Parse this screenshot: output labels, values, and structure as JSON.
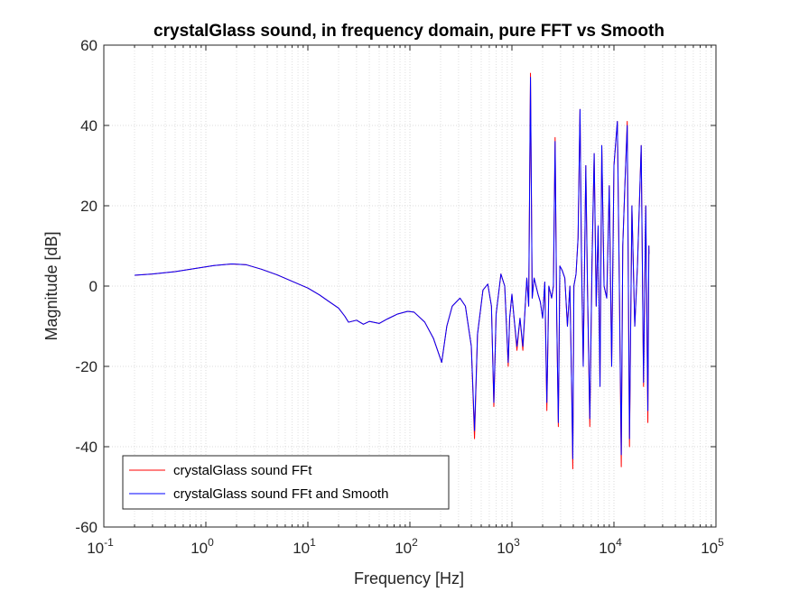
{
  "chart_data": {
    "type": "line",
    "title": "crystalGlass sound, in frequency domain, pure FFT vs Smooth",
    "xlabel": "Frequency [Hz]",
    "ylabel": "Magnitude [dB]",
    "xscale": "log",
    "xlim": [
      0.1,
      100000
    ],
    "ylim": [
      -60,
      60
    ],
    "x_ticks": [
      {
        "base": "10",
        "exp": "-1"
      },
      {
        "base": "10",
        "exp": "0"
      },
      {
        "base": "10",
        "exp": "1"
      },
      {
        "base": "10",
        "exp": "2"
      },
      {
        "base": "10",
        "exp": "3"
      },
      {
        "base": "10",
        "exp": "4"
      },
      {
        "base": "10",
        "exp": "5"
      }
    ],
    "y_ticks": [
      "-60",
      "-40",
      "-20",
      "0",
      "20",
      "40",
      "60"
    ],
    "grid": true,
    "legend_position": "bottom-left",
    "series": [
      {
        "name": "crystalGlass sound FFt",
        "color": "#ff0000",
        "points": [
          [
            0.2,
            2.7
          ],
          [
            0.3,
            3.0
          ],
          [
            0.5,
            3.6
          ],
          [
            0.8,
            4.4
          ],
          [
            1.2,
            5.1
          ],
          [
            1.8,
            5.5
          ],
          [
            2.5,
            5.3
          ],
          [
            3.5,
            4.2
          ],
          [
            5,
            2.8
          ],
          [
            7,
            1.2
          ],
          [
            10,
            -0.5
          ],
          [
            13,
            -2.2
          ],
          [
            16,
            -3.8
          ],
          [
            20,
            -5.5
          ],
          [
            23,
            -7.5
          ],
          [
            25,
            -9
          ],
          [
            30,
            -8.5
          ],
          [
            35,
            -9.5
          ],
          [
            40,
            -8.8
          ],
          [
            50,
            -9.3
          ],
          [
            60,
            -8.2
          ],
          [
            75,
            -7
          ],
          [
            95,
            -6.3
          ],
          [
            110,
            -6.5
          ],
          [
            140,
            -9
          ],
          [
            170,
            -13
          ],
          [
            205,
            -19
          ],
          [
            230,
            -10
          ],
          [
            260,
            -5
          ],
          [
            310,
            -3
          ],
          [
            350,
            -5
          ],
          [
            400,
            -15
          ],
          [
            430,
            -38
          ],
          [
            460,
            -12
          ],
          [
            520,
            -1
          ],
          [
            580,
            0.5
          ],
          [
            630,
            -5
          ],
          [
            665,
            -30
          ],
          [
            700,
            -7
          ],
          [
            780,
            3
          ],
          [
            850,
            0
          ],
          [
            920,
            -20
          ],
          [
            950,
            -8
          ],
          [
            1000,
            -2
          ],
          [
            1050,
            -8
          ],
          [
            1120,
            -16
          ],
          [
            1200,
            -8
          ],
          [
            1280,
            -16
          ],
          [
            1350,
            -5
          ],
          [
            1400,
            2
          ],
          [
            1460,
            -5
          ],
          [
            1520,
            53
          ],
          [
            1580,
            -3
          ],
          [
            1650,
            2
          ],
          [
            1800,
            -2
          ],
          [
            1900,
            -4
          ],
          [
            2000,
            -8
          ],
          [
            2100,
            1
          ],
          [
            2200,
            -31
          ],
          [
            2300,
            0
          ],
          [
            2450,
            -3
          ],
          [
            2550,
            0
          ],
          [
            2650,
            37
          ],
          [
            2750,
            -8
          ],
          [
            2850,
            -35
          ],
          [
            2950,
            5
          ],
          [
            3100,
            4
          ],
          [
            3300,
            2
          ],
          [
            3500,
            -10
          ],
          [
            3700,
            0
          ],
          [
            3850,
            -25
          ],
          [
            3950,
            -45.5
          ],
          [
            4050,
            0
          ],
          [
            4250,
            3
          ],
          [
            4450,
            12
          ],
          [
            4650,
            44
          ],
          [
            4800,
            8
          ],
          [
            5000,
            -20
          ],
          [
            5300,
            30
          ],
          [
            5500,
            0
          ],
          [
            5800,
            -35
          ],
          [
            6100,
            6
          ],
          [
            6400,
            33
          ],
          [
            6700,
            -5
          ],
          [
            7000,
            15
          ],
          [
            7300,
            -25
          ],
          [
            7600,
            35
          ],
          [
            8000,
            0
          ],
          [
            8500,
            -3
          ],
          [
            9000,
            25
          ],
          [
            9500,
            -20
          ],
          [
            10000,
            30
          ],
          [
            10800,
            41
          ],
          [
            11300,
            0
          ],
          [
            11800,
            -45
          ],
          [
            12200,
            10
          ],
          [
            12800,
            25
          ],
          [
            13500,
            41
          ],
          [
            14200,
            -40
          ],
          [
            15000,
            20
          ],
          [
            16000,
            -10
          ],
          [
            17000,
            5
          ],
          [
            18500,
            35
          ],
          [
            19500,
            -25
          ],
          [
            20500,
            20
          ],
          [
            21500,
            -34
          ],
          [
            22000,
            10
          ],
          [
            22050,
            8
          ]
        ]
      },
      {
        "name": "crystalGlass sound FFt and Smooth",
        "color": "#0000ff",
        "points": [
          [
            0.2,
            2.7
          ],
          [
            0.3,
            3.0
          ],
          [
            0.5,
            3.6
          ],
          [
            0.8,
            4.4
          ],
          [
            1.2,
            5.1
          ],
          [
            1.8,
            5.5
          ],
          [
            2.5,
            5.3
          ],
          [
            3.5,
            4.2
          ],
          [
            5,
            2.8
          ],
          [
            7,
            1.2
          ],
          [
            10,
            -0.5
          ],
          [
            13,
            -2.2
          ],
          [
            16,
            -3.8
          ],
          [
            20,
            -5.5
          ],
          [
            23,
            -7.5
          ],
          [
            25,
            -9
          ],
          [
            30,
            -8.5
          ],
          [
            35,
            -9.5
          ],
          [
            40,
            -8.8
          ],
          [
            50,
            -9.3
          ],
          [
            60,
            -8.2
          ],
          [
            75,
            -7
          ],
          [
            95,
            -6.3
          ],
          [
            110,
            -6.5
          ],
          [
            140,
            -9
          ],
          [
            170,
            -13
          ],
          [
            205,
            -19
          ],
          [
            230,
            -10
          ],
          [
            260,
            -5
          ],
          [
            310,
            -3
          ],
          [
            350,
            -5
          ],
          [
            400,
            -15
          ],
          [
            430,
            -36
          ],
          [
            460,
            -12
          ],
          [
            520,
            -1
          ],
          [
            580,
            0.5
          ],
          [
            630,
            -5
          ],
          [
            665,
            -29
          ],
          [
            700,
            -7
          ],
          [
            780,
            3
          ],
          [
            850,
            0
          ],
          [
            920,
            -19
          ],
          [
            950,
            -8
          ],
          [
            1000,
            -2
          ],
          [
            1050,
            -8
          ],
          [
            1120,
            -15
          ],
          [
            1200,
            -8
          ],
          [
            1280,
            -15
          ],
          [
            1350,
            -5
          ],
          [
            1400,
            2
          ],
          [
            1460,
            -5
          ],
          [
            1520,
            52
          ],
          [
            1580,
            -3
          ],
          [
            1650,
            2
          ],
          [
            1800,
            -2
          ],
          [
            1900,
            -4
          ],
          [
            2000,
            -8
          ],
          [
            2100,
            1
          ],
          [
            2200,
            -29
          ],
          [
            2300,
            0
          ],
          [
            2450,
            -3
          ],
          [
            2550,
            0
          ],
          [
            2650,
            36
          ],
          [
            2750,
            -8
          ],
          [
            2850,
            -34
          ],
          [
            2950,
            5
          ],
          [
            3100,
            4
          ],
          [
            3300,
            2
          ],
          [
            3500,
            -10
          ],
          [
            3700,
            0
          ],
          [
            3850,
            -25
          ],
          [
            3950,
            -43
          ],
          [
            4050,
            0
          ],
          [
            4250,
            3
          ],
          [
            4450,
            12
          ],
          [
            4650,
            44
          ],
          [
            4800,
            8
          ],
          [
            5000,
            -20
          ],
          [
            5300,
            30
          ],
          [
            5500,
            0
          ],
          [
            5800,
            -33
          ],
          [
            6100,
            6
          ],
          [
            6400,
            33
          ],
          [
            6700,
            -5
          ],
          [
            7000,
            15
          ],
          [
            7300,
            -25
          ],
          [
            7600,
            35
          ],
          [
            8000,
            0
          ],
          [
            8500,
            -3
          ],
          [
            9000,
            25
          ],
          [
            9500,
            -20
          ],
          [
            10000,
            30
          ],
          [
            10800,
            41
          ],
          [
            11300,
            0
          ],
          [
            11800,
            -42
          ],
          [
            12200,
            10
          ],
          [
            12800,
            25
          ],
          [
            13500,
            40
          ],
          [
            14200,
            -38
          ],
          [
            15000,
            20
          ],
          [
            16000,
            -10
          ],
          [
            17000,
            5
          ],
          [
            18500,
            35
          ],
          [
            19500,
            -24
          ],
          [
            20500,
            20
          ],
          [
            21500,
            -31
          ],
          [
            22000,
            10
          ],
          [
            22050,
            8
          ]
        ]
      }
    ]
  }
}
